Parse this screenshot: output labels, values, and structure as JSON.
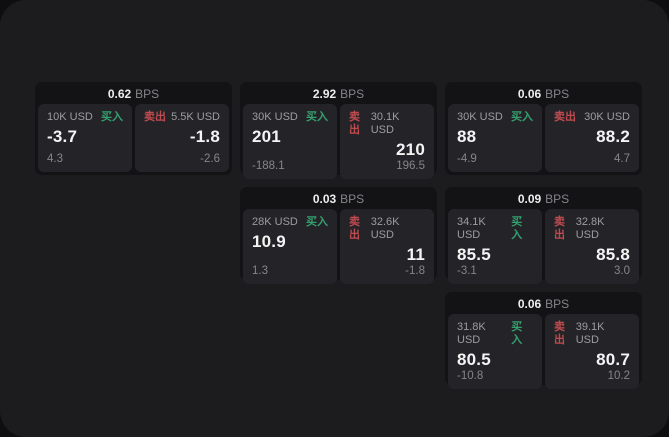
{
  "labels": {
    "buy": "买入",
    "sell": "卖出",
    "bps_unit": "BPS"
  },
  "colors": {
    "buy_green": "#35a06f",
    "sell_red": "#bf4b4f",
    "panel_bg": "#1c1c1e",
    "card_bg": "#131315",
    "tile_bg": "#242428"
  },
  "cards": [
    {
      "col": 1,
      "row": 1,
      "bps": "0.62",
      "buy_size": "10K USD",
      "buy_value": "-3.7",
      "buy_sub": "4.3",
      "sell_size": "5.5K USD",
      "sell_value": "-1.8",
      "sell_sub": "-2.6"
    },
    {
      "col": 2,
      "row": 1,
      "bps": "2.92",
      "buy_size": "30K USD",
      "buy_value": "201",
      "buy_sub": "-188.1",
      "sell_size": "30.1K USD",
      "sell_value": "210",
      "sell_sub": "196.5"
    },
    {
      "col": 3,
      "row": 1,
      "bps": "0.06",
      "buy_size": "30K USD",
      "buy_value": "88",
      "buy_sub": "-4.9",
      "sell_size": "30K USD",
      "sell_value": "88.2",
      "sell_sub": "4.7"
    },
    {
      "col": 2,
      "row": 2,
      "bps": "0.03",
      "buy_size": "28K USD",
      "buy_value": "10.9",
      "buy_sub": "1.3",
      "sell_size": "32.6K USD",
      "sell_value": "11",
      "sell_sub": "-1.8"
    },
    {
      "col": 3,
      "row": 2,
      "bps": "0.09",
      "buy_size": "34.1K USD",
      "buy_value": "85.5",
      "buy_sub": "-3.1",
      "sell_size": "32.8K USD",
      "sell_value": "85.8",
      "sell_sub": "3.0"
    },
    {
      "col": 3,
      "row": 3,
      "bps": "0.06",
      "buy_size": "31.8K USD",
      "buy_value": "80.5",
      "buy_sub": "-10.8",
      "sell_size": "39.1K USD",
      "sell_value": "80.7",
      "sell_sub": "10.2"
    }
  ]
}
